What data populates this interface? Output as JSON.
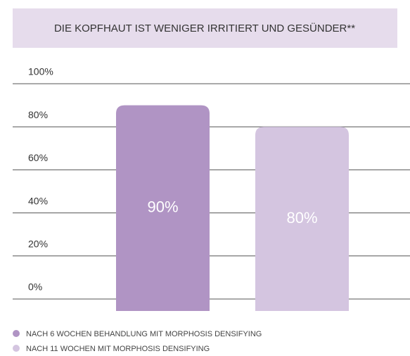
{
  "chart_data": {
    "type": "bar",
    "title": "DIE KOPFHAUT IST WENIGER IRRITIERT UND GESÜNDER**",
    "categories": [
      null
    ],
    "series": [
      {
        "name": "NACH 6 WOCHEN BEHANDLUNG MIT MORPHOSIS DENSIFYING",
        "color": "#b094c4",
        "values": [
          90
        ],
        "value_labels": [
          "90%"
        ]
      },
      {
        "name": "NACH 11 WOCHEN MIT MORPHOSIS DENSIFYING",
        "color": "#d4c5e0",
        "values": [
          80
        ],
        "value_labels": [
          "80%"
        ]
      }
    ],
    "ylim": [
      0,
      100
    ],
    "yticks": [
      {
        "value": 0,
        "label": "0%"
      },
      {
        "value": 20,
        "label": "20%"
      },
      {
        "value": 40,
        "label": "40%"
      },
      {
        "value": 60,
        "label": "60%"
      },
      {
        "value": 80,
        "label": "80%"
      },
      {
        "value": 100,
        "label": "100%"
      }
    ],
    "grid": true
  }
}
